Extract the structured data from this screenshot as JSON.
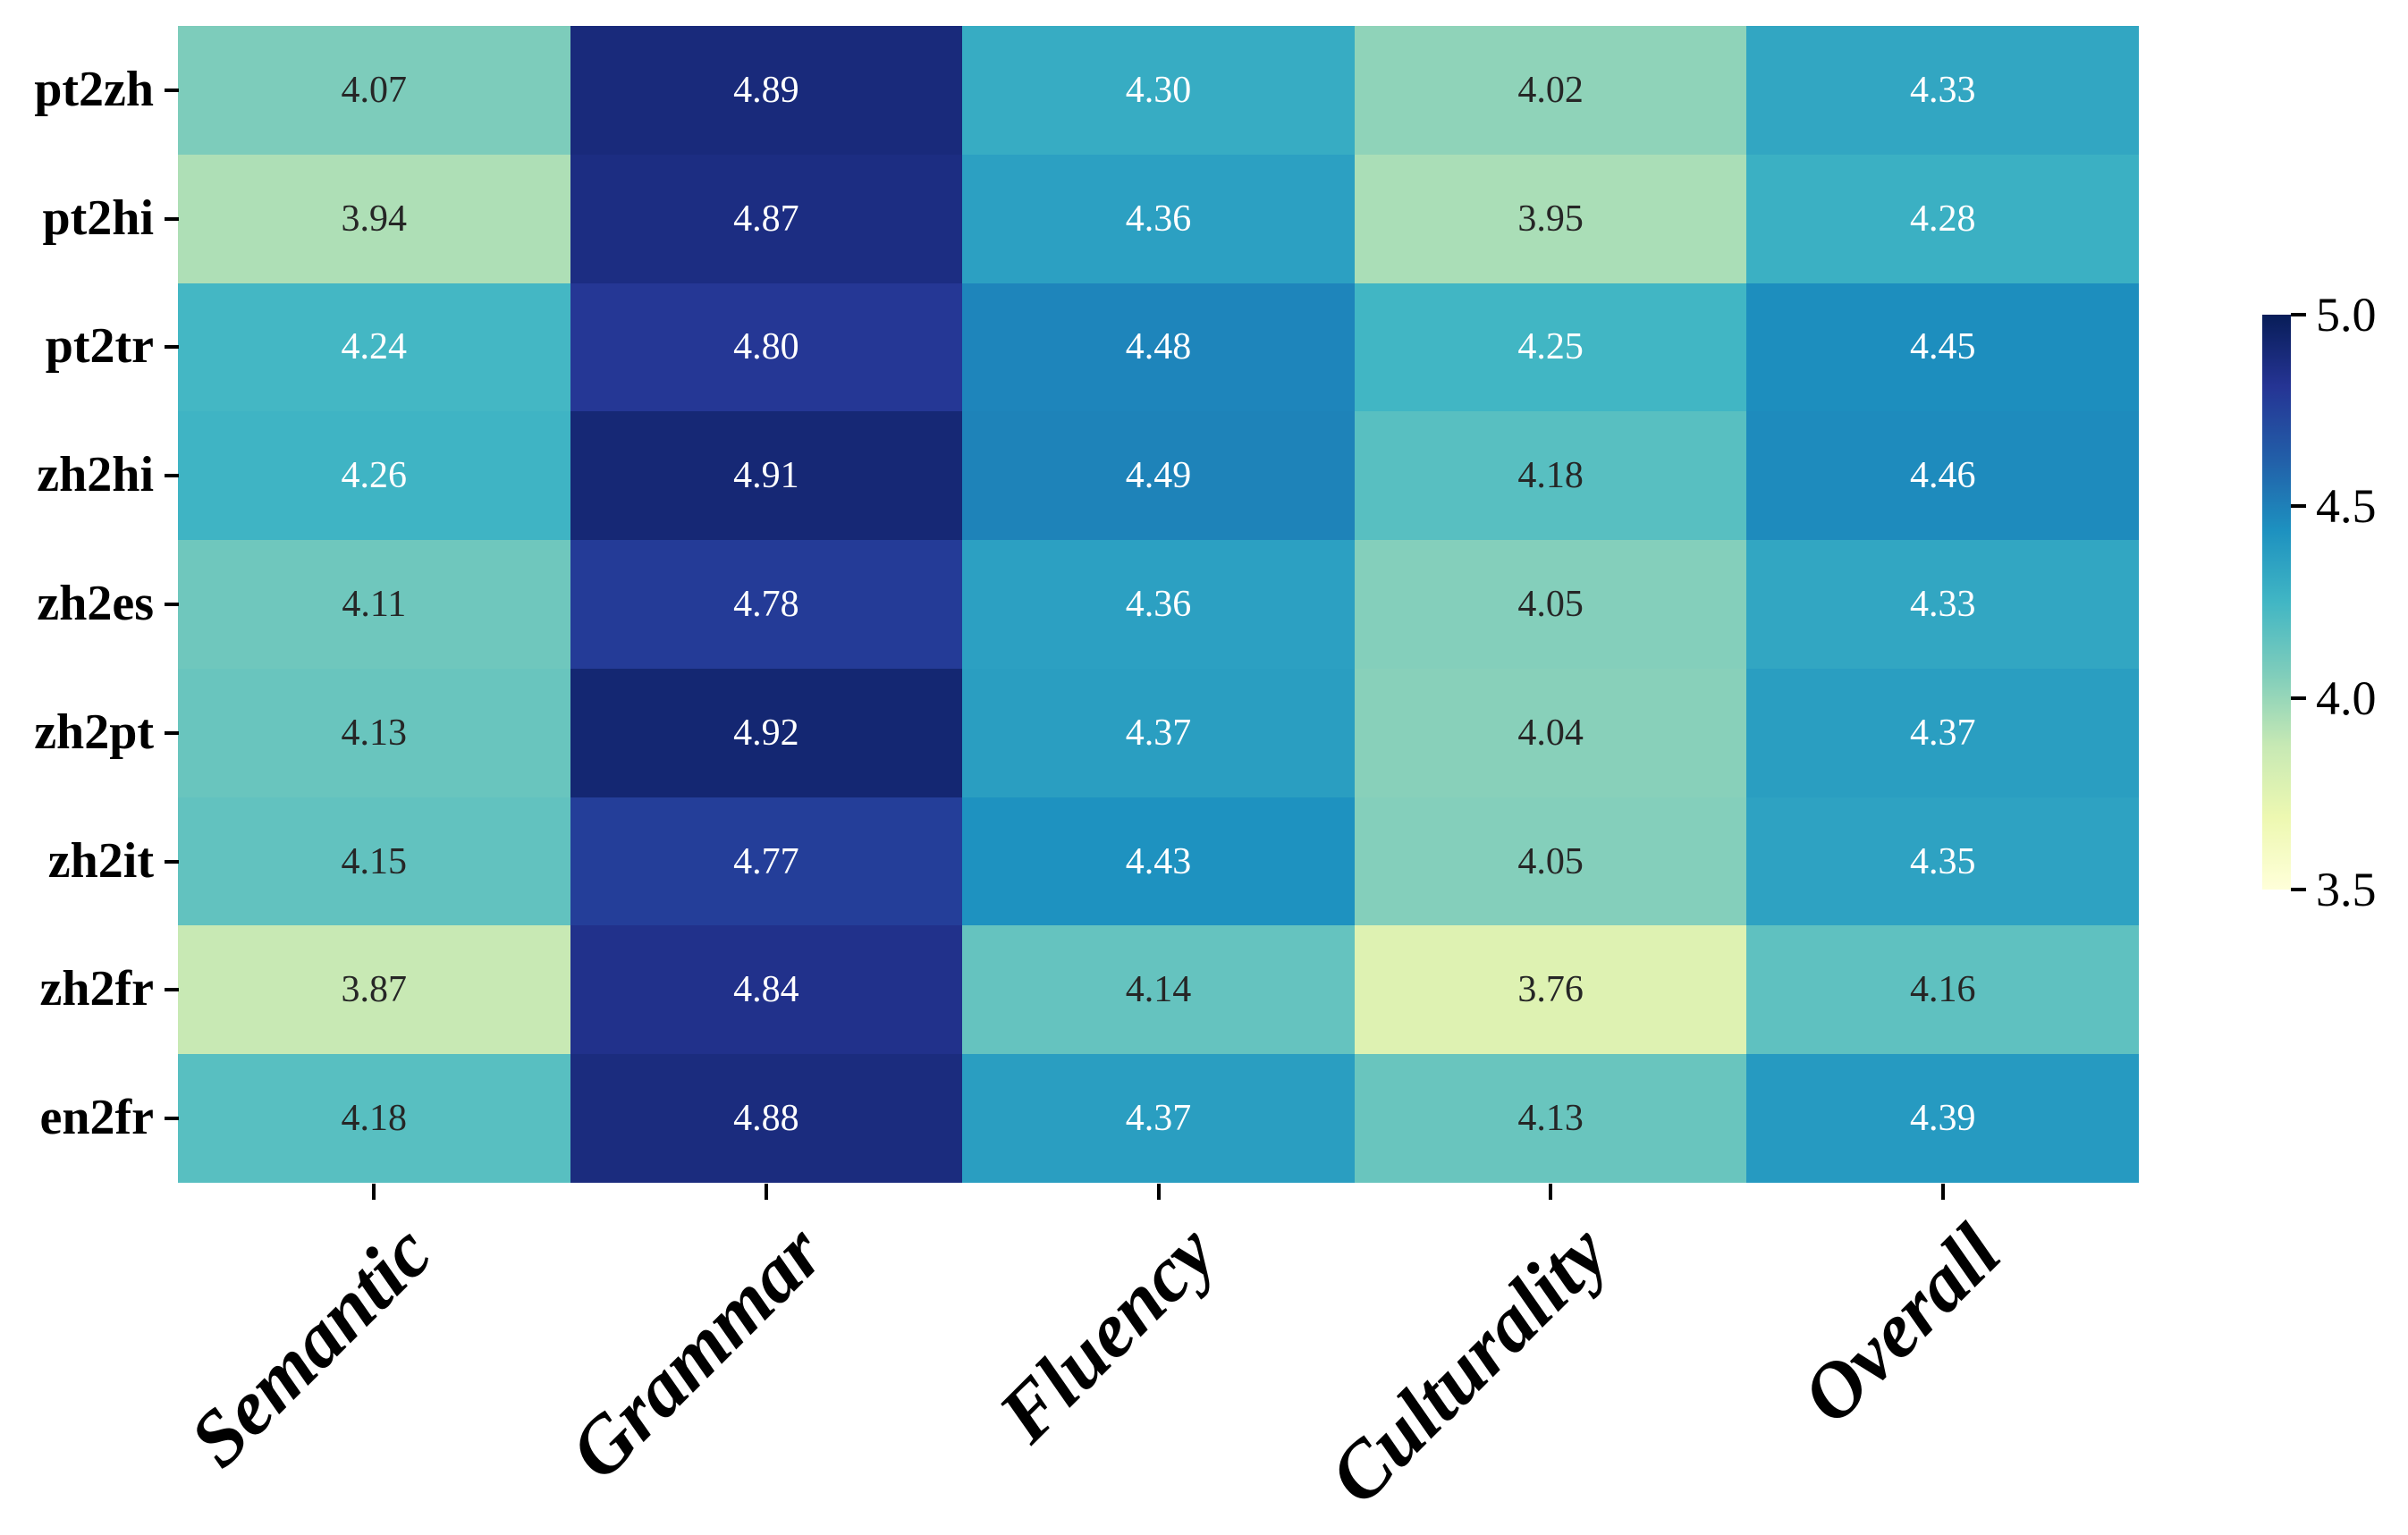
{
  "chart_data": {
    "type": "heatmap",
    "rows": [
      "pt2zh",
      "pt2hi",
      "pt2tr",
      "zh2hi",
      "zh2es",
      "zh2pt",
      "zh2it",
      "zh2fr",
      "en2fr"
    ],
    "columns": [
      "Semantic",
      "Grammar",
      "Fluency",
      "Culturality",
      "Overall"
    ],
    "values": [
      [
        4.07,
        4.89,
        4.3,
        4.02,
        4.33
      ],
      [
        3.94,
        4.87,
        4.36,
        3.95,
        4.28
      ],
      [
        4.24,
        4.8,
        4.48,
        4.25,
        4.45
      ],
      [
        4.26,
        4.91,
        4.49,
        4.18,
        4.46
      ],
      [
        4.11,
        4.78,
        4.36,
        4.05,
        4.33
      ],
      [
        4.13,
        4.92,
        4.37,
        4.04,
        4.37
      ],
      [
        4.15,
        4.77,
        4.43,
        4.05,
        4.35
      ],
      [
        3.87,
        4.84,
        4.14,
        3.76,
        4.16
      ],
      [
        4.18,
        4.88,
        4.37,
        4.13,
        4.39
      ]
    ],
    "value_decimals": 2,
    "vmin": 3.5,
    "vmax": 5.0,
    "grid": false,
    "legend_position": "right",
    "colormap": {
      "name": "YlGnBu",
      "stops": [
        "#ffffd9",
        "#edf8b1",
        "#c7e9b4",
        "#7fcdbb",
        "#41b6c4",
        "#1d91c0",
        "#225ea8",
        "#253494",
        "#081d58"
      ]
    },
    "colorbar": {
      "tick_labels": [
        "5.0",
        "4.5",
        "4.0",
        "3.5"
      ]
    },
    "annotation_colors": {
      "dark": "#262626",
      "light": "#ffffff"
    },
    "axis_color": "#000000"
  }
}
